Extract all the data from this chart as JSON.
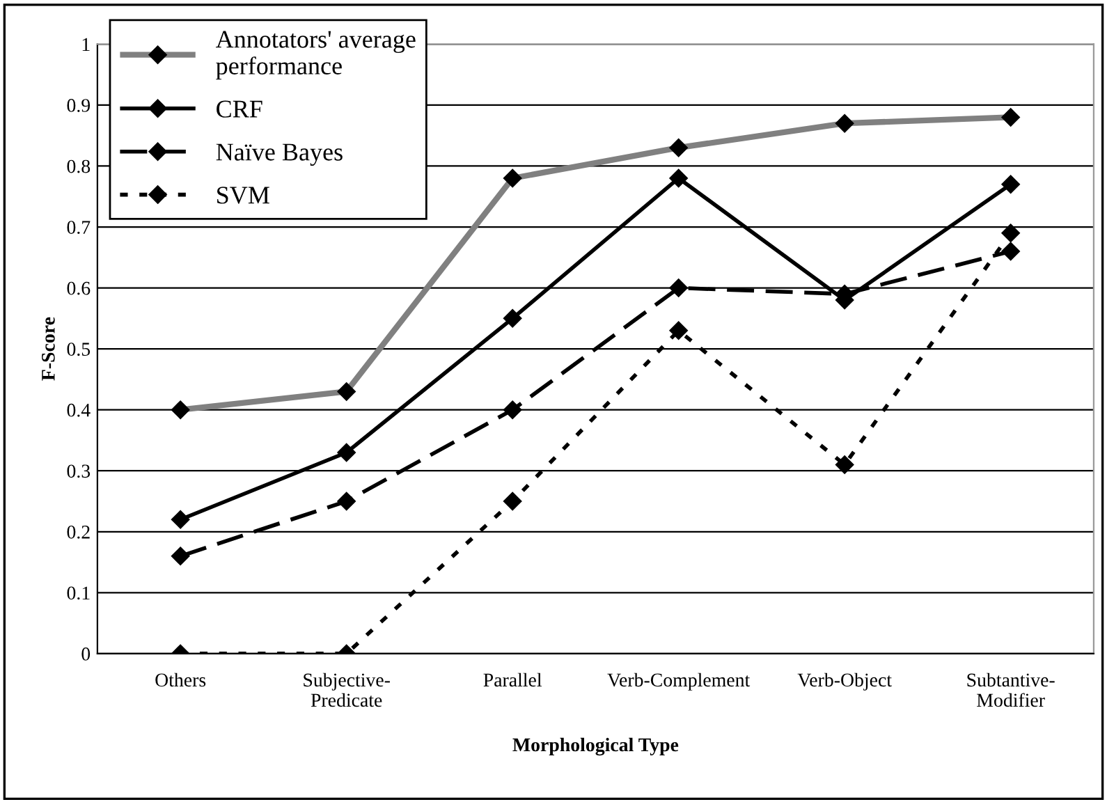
{
  "chart_data": {
    "type": "line",
    "xlabel": "Morphological Type",
    "ylabel": "F-Score",
    "categories": [
      "Others",
      "Subjective-\nPredicate",
      "Parallel",
      "Verb-Complement",
      "Verb-Object",
      "Subtantive-\nModifier"
    ],
    "series": [
      {
        "name": "Annotators' average\nperformance",
        "color": "#808080",
        "line_style": "solid",
        "values": [
          0.4,
          0.43,
          0.78,
          0.83,
          0.87,
          0.88
        ]
      },
      {
        "name": "CRF",
        "color": "#000000",
        "line_style": "solid",
        "values": [
          0.22,
          0.33,
          0.55,
          0.78,
          0.58,
          0.77
        ]
      },
      {
        "name": "Naïve Bayes",
        "color": "#000000",
        "line_style": "dashed",
        "values": [
          0.16,
          0.25,
          0.4,
          0.6,
          0.59,
          0.66
        ]
      },
      {
        "name": "SVM",
        "color": "#000000",
        "line_style": "dotted",
        "values": [
          0,
          0,
          0.25,
          0.53,
          0.31,
          0.69
        ]
      }
    ],
    "ylim": [
      0,
      1
    ],
    "yticks": [
      0,
      0.1,
      0.2,
      0.3,
      0.4,
      0.5,
      0.6,
      0.7,
      0.8,
      0.9,
      1
    ],
    "grid": "y",
    "legend": "top left",
    "marker": "diamond"
  }
}
